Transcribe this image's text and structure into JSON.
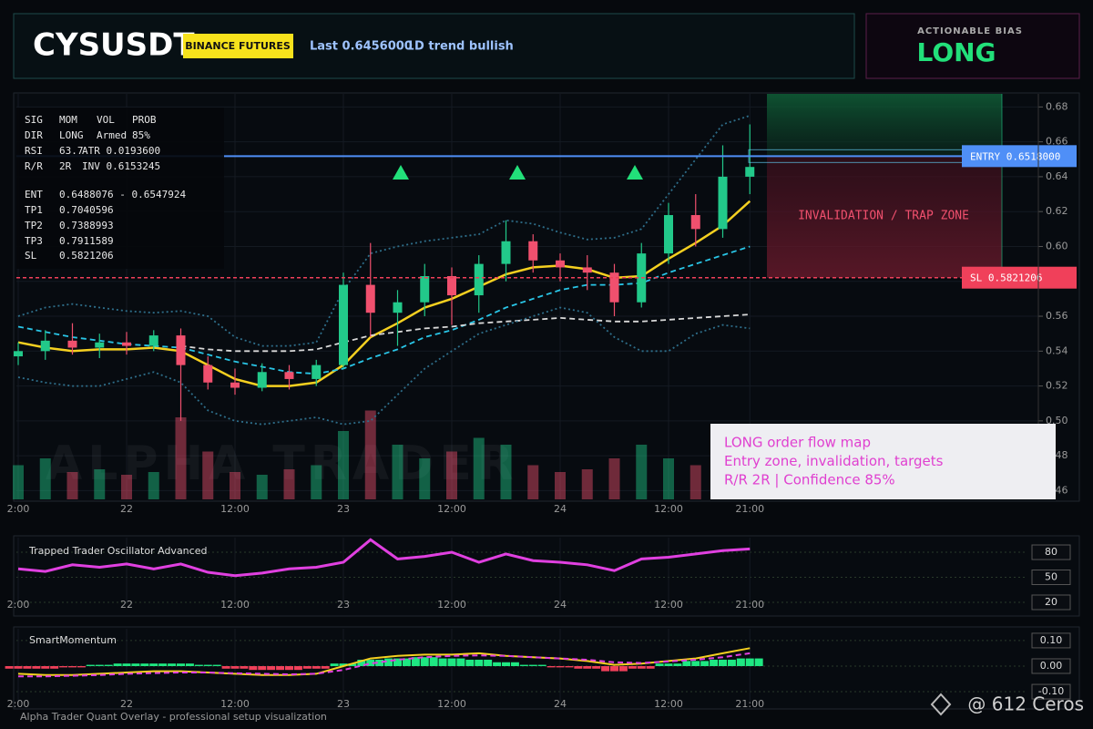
{
  "header": {
    "symbol": "CYSUSDT",
    "exchange": "BINANCE FUTURES",
    "last": "Last 0.6456000",
    "trend": "1D trend bullish"
  },
  "bias": {
    "label": "ACTIONABLE BIAS",
    "value": "LONG"
  },
  "stats_panel": {
    "rows": [
      [
        "SIG",
        "MOM",
        "VOL",
        "PROB"
      ],
      [
        "DIR",
        "LONG",
        "Armed",
        "85%"
      ],
      [
        "RSI",
        "63.7",
        "ATR 0.0193600"
      ],
      [
        "R/R",
        "2R",
        "INV 0.6153245"
      ],
      [
        "ENT",
        "0.6488076 - 0.6547924"
      ],
      [
        "TP1",
        "0.7040596"
      ],
      [
        "TP2",
        "0.7388993"
      ],
      [
        "TP3",
        "0.7911589"
      ],
      [
        "SL",
        "0.5821206"
      ]
    ]
  },
  "annotation": {
    "lines": [
      "LONG order flow map",
      "Entry zone, invalidation, targets",
      "R/R 2R | Confidence 85%"
    ]
  },
  "footer": {
    "caption": "Alpha Trader Quant Overlay - professional setup visualization",
    "credit": "@ 612 Ceros"
  },
  "chart_data": [
    {
      "type": "candlestick",
      "watermark": "ALPHA TRADER",
      "categories": [
        "2:00",
        null,
        null,
        null,
        "22",
        null,
        null,
        null,
        "12:00",
        null,
        null,
        null,
        "23",
        null,
        null,
        null,
        "12:00",
        null,
        null,
        null,
        "24",
        null,
        null,
        null,
        "12:00",
        null,
        null,
        "21:00"
      ],
      "open": [
        0.537,
        0.54,
        0.546,
        0.542,
        0.545,
        0.543,
        0.549,
        0.532,
        0.522,
        0.519,
        0.528,
        0.524,
        0.532,
        0.578,
        0.562,
        0.568,
        0.583,
        0.572,
        0.59,
        0.603,
        0.592,
        0.588,
        0.585,
        0.568,
        0.596,
        0.618,
        0.61,
        0.64
      ],
      "high": [
        0.545,
        0.552,
        0.556,
        0.55,
        0.551,
        0.552,
        0.553,
        0.537,
        0.53,
        0.533,
        0.532,
        0.535,
        0.585,
        0.602,
        0.575,
        0.59,
        0.588,
        0.595,
        0.615,
        0.607,
        0.596,
        0.595,
        0.59,
        0.602,
        0.625,
        0.63,
        0.658,
        0.67
      ],
      "low": [
        0.532,
        0.535,
        0.538,
        0.536,
        0.538,
        0.54,
        0.5,
        0.518,
        0.515,
        0.517,
        0.518,
        0.52,
        0.53,
        0.548,
        0.543,
        0.56,
        0.555,
        0.562,
        0.58,
        0.585,
        0.58,
        0.575,
        0.56,
        0.565,
        0.59,
        0.6,
        0.605,
        0.63
      ],
      "close": [
        0.54,
        0.546,
        0.542,
        0.545,
        0.543,
        0.549,
        0.532,
        0.522,
        0.519,
        0.528,
        0.524,
        0.532,
        0.578,
        0.562,
        0.568,
        0.583,
        0.572,
        0.59,
        0.603,
        0.592,
        0.588,
        0.585,
        0.568,
        0.596,
        0.618,
        0.61,
        0.64,
        0.6456
      ],
      "up_color": "#22c98a",
      "down_color": "#f0506e",
      "ylim": [
        0.455,
        0.6875
      ],
      "yticks": [
        0.46,
        0.48,
        {
          "value": 0.5,
          "label": "0.50"
        },
        0.52,
        0.54,
        0.56,
        0.58,
        {
          "value": 0.6,
          "label": "0.60"
        },
        0.62,
        0.64,
        0.66,
        0.68
      ],
      "grid": true,
      "lines": [
        {
          "color": "#f5d020",
          "style": "solid",
          "values": [
            0.545,
            0.542,
            0.54,
            0.541,
            0.541,
            0.542,
            0.54,
            0.532,
            0.524,
            0.52,
            0.52,
            0.522,
            0.532,
            0.548,
            0.556,
            0.565,
            0.57,
            0.577,
            0.584,
            0.588,
            0.589,
            0.587,
            0.582,
            0.583,
            0.593,
            0.602,
            0.612,
            0.626
          ]
        },
        {
          "color": "#29c5e6",
          "style": "dashed",
          "values": [
            0.554,
            0.551,
            0.548,
            0.546,
            0.544,
            0.543,
            0.542,
            0.538,
            0.534,
            0.531,
            0.528,
            0.527,
            0.53,
            0.536,
            0.541,
            0.548,
            0.552,
            0.558,
            0.565,
            0.57,
            0.575,
            0.578,
            0.578,
            0.579,
            0.585,
            0.59,
            0.595,
            0.6
          ]
        },
        {
          "color": "#d8d8d8",
          "style": "dashed",
          "values": [
            null,
            null,
            null,
            null,
            null,
            null,
            0.543,
            0.541,
            0.54,
            0.54,
            0.54,
            0.541,
            0.545,
            0.549,
            0.551,
            0.553,
            0.554,
            0.556,
            0.557,
            0.558,
            0.559,
            0.558,
            0.557,
            0.557,
            0.558,
            0.559,
            0.56,
            0.561
          ]
        },
        {
          "color": "#2e6e8a",
          "style": "dotted",
          "values": [
            0.56,
            0.565,
            0.567,
            0.565,
            0.563,
            0.562,
            0.563,
            0.56,
            0.548,
            0.543,
            0.543,
            0.545,
            0.575,
            0.596,
            0.6,
            0.603,
            0.605,
            0.607,
            0.615,
            0.613,
            0.608,
            0.604,
            0.605,
            0.61,
            0.63,
            0.65,
            0.67,
            0.675
          ]
        },
        {
          "color": "#2e6e8a",
          "style": "dotted",
          "values": [
            0.525,
            0.522,
            0.52,
            0.52,
            0.524,
            0.528,
            0.522,
            0.506,
            0.5,
            0.498,
            0.5,
            0.502,
            0.498,
            0.5,
            0.515,
            0.53,
            0.54,
            0.55,
            0.555,
            0.56,
            0.565,
            0.562,
            0.548,
            0.54,
            0.54,
            0.55,
            0.555,
            0.553
          ]
        }
      ],
      "volume": {
        "values": [
          25,
          30,
          20,
          22,
          18,
          20,
          60,
          35,
          20,
          18,
          22,
          25,
          50,
          65,
          40,
          30,
          35,
          45,
          40,
          25,
          20,
          22,
          30,
          40,
          30,
          25,
          35,
          30
        ]
      },
      "levels": [
        {
          "value": 0.6518,
          "label": "ENTRY 0.6518000",
          "color": "#4f8ff7"
        },
        {
          "value": 0.5821206,
          "label": "SL 0.5821206",
          "color": "#f0405a"
        }
      ],
      "zone_label": "INVALIDATION / TRAP ZONE"
    },
    {
      "type": "line",
      "title": "Trapped Trader Oscillator Advanced",
      "categories": [
        "2:00",
        null,
        null,
        null,
        "22",
        null,
        null,
        null,
        "12:00",
        null,
        null,
        null,
        "23",
        null,
        null,
        null,
        "12:00",
        null,
        null,
        null,
        "24",
        null,
        null,
        null,
        "12:00",
        null,
        null,
        "21:00"
      ],
      "values": [
        60,
        57,
        65,
        62,
        66,
        60,
        66,
        56,
        52,
        55,
        60,
        62,
        68,
        95,
        72,
        75,
        80,
        68,
        78,
        70,
        68,
        65,
        58,
        72,
        74,
        78,
        82,
        84
      ],
      "color": "#e040e0",
      "ylim": [
        17.8,
        97.5
      ],
      "yticks": [
        20,
        50,
        80
      ]
    },
    {
      "type": "combo",
      "title": "SmartMomentum",
      "categories": [
        "2:00",
        null,
        null,
        null,
        "22",
        null,
        null,
        null,
        "12:00",
        null,
        null,
        null,
        "23",
        null,
        null,
        null,
        "12:00",
        null,
        null,
        null,
        "24",
        null,
        null,
        null,
        "12:00",
        null,
        null,
        "21:00"
      ],
      "values": [
        -0.01,
        -0.01,
        -0.005,
        0.005,
        0.01,
        0.01,
        0.01,
        0.005,
        -0.01,
        -0.015,
        -0.015,
        -0.01,
        0.01,
        0.025,
        0.03,
        0.035,
        0.03,
        0.025,
        0.015,
        0.005,
        -0.005,
        -0.01,
        -0.02,
        -0.01,
        0.01,
        0.02,
        0.025,
        0.03
      ],
      "up_color": "#1ee882",
      "down_color": "#f0405a",
      "lines": [
        {
          "color": "#f5d020",
          "style": "solid",
          "values": [
            -0.03,
            -0.035,
            -0.035,
            -0.03,
            -0.025,
            -0.02,
            -0.02,
            -0.025,
            -0.03,
            -0.035,
            -0.035,
            -0.03,
            0.0,
            0.03,
            0.04,
            0.045,
            0.045,
            0.05,
            0.04,
            0.035,
            0.03,
            0.02,
            0.005,
            0.01,
            0.02,
            0.03,
            0.05,
            0.07
          ]
        },
        {
          "color": "#e040e0",
          "style": "dashed",
          "values": [
            -0.04,
            -0.04,
            -0.038,
            -0.035,
            -0.03,
            -0.027,
            -0.025,
            -0.025,
            -0.028,
            -0.03,
            -0.032,
            -0.03,
            -0.015,
            0.01,
            0.025,
            0.035,
            0.04,
            0.042,
            0.04,
            0.035,
            0.03,
            0.025,
            0.015,
            0.012,
            0.018,
            0.025,
            0.035,
            0.05
          ]
        }
      ],
      "ylim": [
        -0.139,
        0.146
      ],
      "yticks": [
        {
          "value": 0.1,
          "label": "0.10"
        },
        {
          "value": 0,
          "label": "0.00"
        },
        {
          "value": -0.1,
          "label": "-0.10"
        }
      ]
    }
  ]
}
